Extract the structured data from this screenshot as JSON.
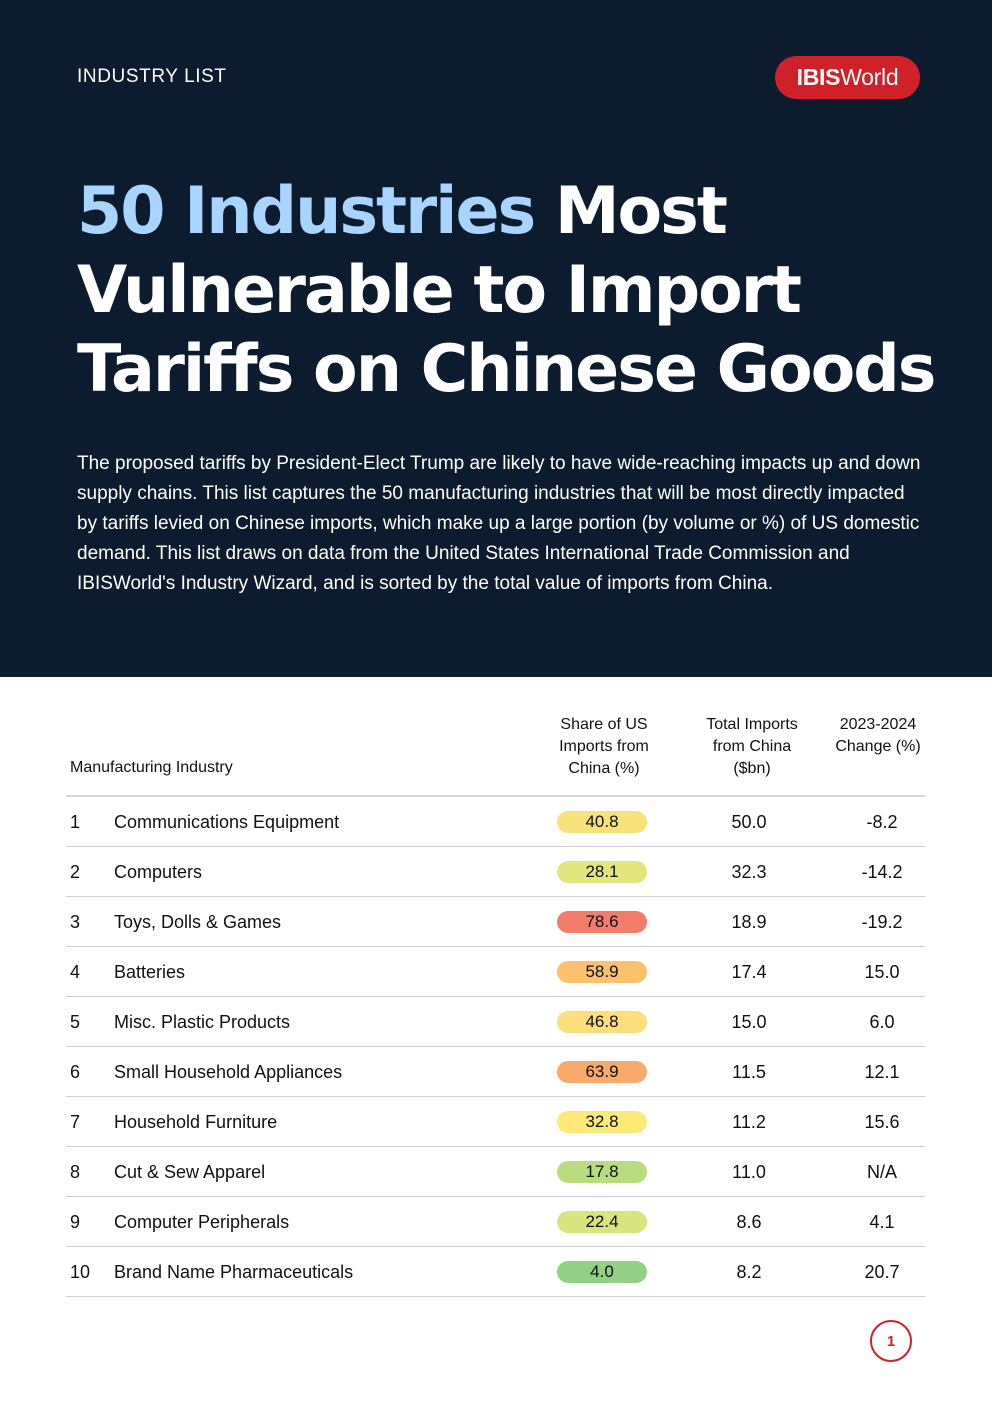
{
  "header": {
    "eyebrow": "INDUSTRY LIST",
    "logo_bold": "IBIS",
    "logo_light": "World"
  },
  "title": {
    "accent": "50 Industries",
    "rest": " Most Vulnerable to Import Tariffs on Chinese Goods"
  },
  "intro": "The proposed tariffs by President-Elect Trump are likely to have wide-reaching impacts up and down supply chains. This list captures the 50 manufacturing industries that will be most directly impacted by tariffs levied on Chinese imports, which make up a large portion (by volume or %) of US domestic demand. This list draws on data from the United States International Trade Commission and IBISWorld's Industry Wizard, and is sorted by the total value of imports from China.",
  "table": {
    "headers": {
      "industry": "Manufacturing Industry",
      "share": "Share of US Imports from China (%)",
      "total": "Total Imports from China ($bn)",
      "change": "2023-2024 Change (%)"
    },
    "rows": [
      {
        "rank": "1",
        "industry": "Communications Equipment",
        "share": "40.8",
        "total": "50.0",
        "change": "-8.2",
        "pill_color": "#f7e27a"
      },
      {
        "rank": "2",
        "industry": "Computers",
        "share": "28.1",
        "total": "32.3",
        "change": "-14.2",
        "pill_color": "#e2e67c"
      },
      {
        "rank": "3",
        "industry": "Toys, Dolls & Games",
        "share": "78.6",
        "total": "18.9",
        "change": "-19.2",
        "pill_color": "#f47c6a"
      },
      {
        "rank": "4",
        "industry": "Batteries",
        "share": "58.9",
        "total": "17.4",
        "change": "15.0",
        "pill_color": "#fbc16f"
      },
      {
        "rank": "5",
        "industry": "Misc. Plastic Products",
        "share": "46.8",
        "total": "15.0",
        "change": "6.0",
        "pill_color": "#fbdf7c"
      },
      {
        "rank": "6",
        "industry": "Small Household Appliances",
        "share": "63.9",
        "total": "11.5",
        "change": "12.1",
        "pill_color": "#f9a96a"
      },
      {
        "rank": "7",
        "industry": "Household Furniture",
        "share": "32.8",
        "total": "11.2",
        "change": "15.6",
        "pill_color": "#fcea78"
      },
      {
        "rank": "8",
        "industry": "Cut & Sew Apparel",
        "share": "17.8",
        "total": "11.0",
        "change": "N/A",
        "pill_color": "#b9dc7e"
      },
      {
        "rank": "9",
        "industry": "Computer Peripherals",
        "share": "22.4",
        "total": "8.6",
        "change": "4.1",
        "pill_color": "#d8e57e"
      },
      {
        "rank": "10",
        "industry": "Brand Name Pharmaceuticals",
        "share": "4.0",
        "total": "8.2",
        "change": "20.7",
        "pill_color": "#94cf86"
      }
    ]
  },
  "page_number": "1"
}
